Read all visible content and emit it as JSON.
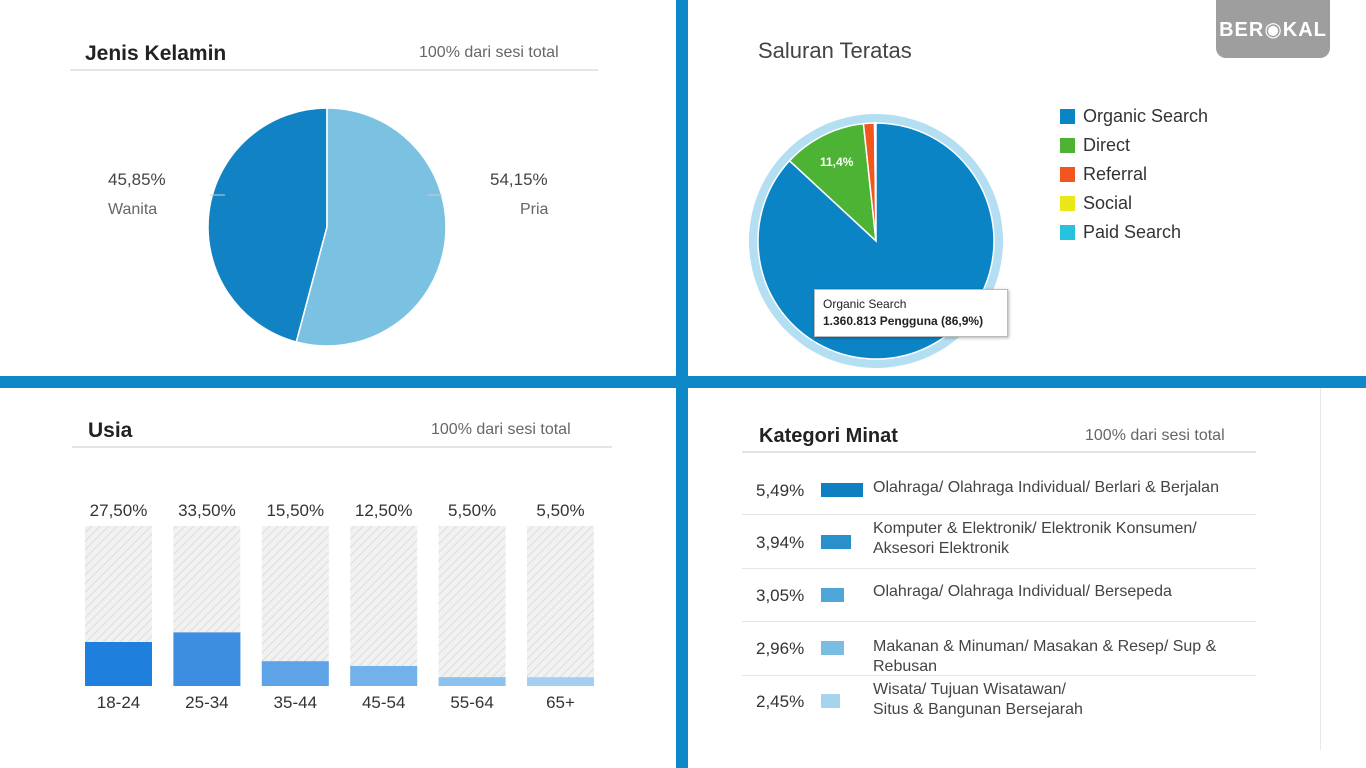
{
  "gender": {
    "title": "Jenis Kelamin",
    "subtitle": "100% dari sesi total",
    "left_pct": "45,85%",
    "left_name": "Wanita",
    "right_pct": "54,15%",
    "right_name": "Pria"
  },
  "channel": {
    "title": "Saluran Teratas",
    "slice_label": "11,4%",
    "tooltip_name": "Organic Search",
    "tooltip_value": "1.360.813 Pengguna (86,9%)",
    "legend": [
      "Organic Search",
      "Direct",
      "Referral",
      "Social",
      "Paid Search"
    ],
    "logo_text": "BER◉KAL"
  },
  "age": {
    "title": "Usia",
    "subtitle": "100% dari sesi total",
    "pct_labels": [
      "27,50%",
      "33,50%",
      "15,50%",
      "12,50%",
      "5,50%",
      "5,50%"
    ],
    "cat_labels": [
      "18-24",
      "25-34",
      "35-44",
      "45-54",
      "55-64",
      "65+"
    ]
  },
  "interest": {
    "title": "Kategori Minat",
    "subtitle": "100% dari sesi total",
    "rows": [
      {
        "pct": "5,49%",
        "line1": "Olahraga/ Olahraga Individual/ Berlari & Berjalan",
        "line2": ""
      },
      {
        "pct": "3,94%",
        "line1": "Komputer & Elektronik/ Elektronik Konsumen/",
        "line2": "Aksesori Elektronik"
      },
      {
        "pct": "3,05%",
        "line1": "Olahraga/ Olahraga Individual/ Bersepeda",
        "line2": ""
      },
      {
        "pct": "2,96%",
        "line1": "Makanan & Minuman/ Masakan & Resep/ Sup &",
        "line2": "Rebusan"
      },
      {
        "pct": "2,45%",
        "line1": "Wisata/ Tujuan Wisatawan/",
        "line2": "Situs & Bangunan Bersejarah"
      }
    ]
  },
  "chart_data": [
    {
      "type": "pie",
      "title": "Jenis Kelamin",
      "categories": [
        "Wanita",
        "Pria"
      ],
      "values": [
        45.85,
        54.15
      ],
      "colors": [
        "#1183c4",
        "#7bc1e2"
      ]
    },
    {
      "type": "pie",
      "title": "Saluran Teratas",
      "categories": [
        "Organic Search",
        "Direct",
        "Referral",
        "Social",
        "Paid Search"
      ],
      "values": [
        86.9,
        11.4,
        1.5,
        0.1,
        0.1
      ],
      "colors": [
        "#0b84c6",
        "#4db335",
        "#f2551d",
        "#e8e817",
        "#26c2de"
      ],
      "legend_position": "right"
    },
    {
      "type": "bar",
      "title": "Usia",
      "categories": [
        "18-24",
        "25-34",
        "35-44",
        "45-54",
        "55-64",
        "65+"
      ],
      "values": [
        27.5,
        33.5,
        15.5,
        12.5,
        5.5,
        5.5
      ],
      "ylim": [
        0,
        100
      ],
      "colors": [
        "#1e7fdc",
        "#3d8ee0",
        "#5ea3e6",
        "#73b1ea",
        "#8dc1ee",
        "#a4cff2"
      ]
    },
    {
      "type": "bar",
      "title": "Kategori Minat",
      "categories": [
        "Olahraga/ Olahraga Individual/ Berlari & Berjalan",
        "Komputer & Elektronik/ Elektronik Konsumen/ Aksesori Elektronik",
        "Olahraga/ Olahraga Individual/ Bersepeda",
        "Makanan & Minuman/ Masakan & Resep/ Sup & Rebusan",
        "Wisata/ Tujuan Wisatawan/ Situs & Bangunan Bersejarah"
      ],
      "values": [
        5.49,
        3.94,
        3.05,
        2.96,
        2.45
      ],
      "colors": [
        "#0f7fc2",
        "#2a90cc",
        "#4ea6d8",
        "#79bde3",
        "#a6d3ee"
      ]
    }
  ]
}
